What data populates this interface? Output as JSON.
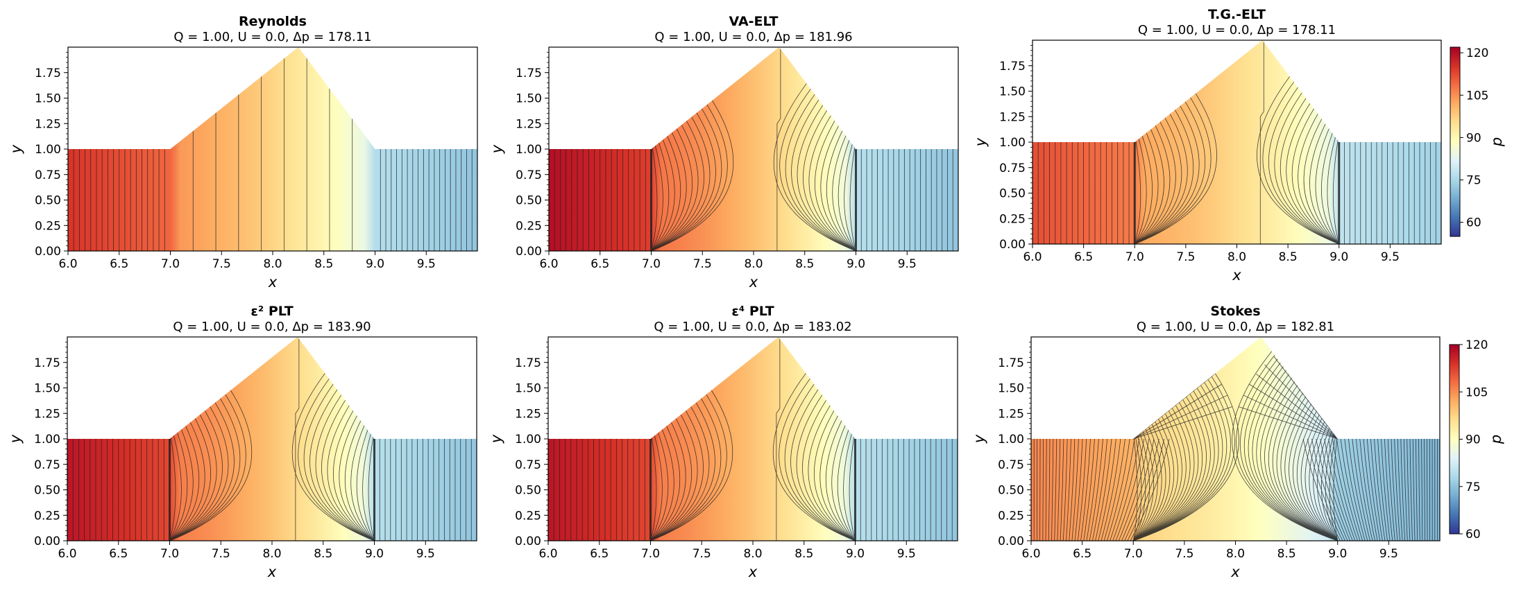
{
  "figure": {
    "width": 2192,
    "height": 851,
    "colormap": "RdYlBu_r",
    "colorbar_label": "p"
  },
  "chart_data": [
    {
      "type": "contour",
      "title": "Reynolds",
      "subtitle": "Q = 1.00, U = 0.0, Δp = 178.11",
      "xlabel": "x",
      "ylabel": "y",
      "xlim": [
        6.0,
        10.0
      ],
      "ylim": [
        0.0,
        2.0
      ],
      "xticks": [
        "6.0",
        "6.5",
        "7.0",
        "7.5",
        "8.0",
        "8.5",
        "9.0",
        "9.5"
      ],
      "yticks": [
        "0.00",
        "0.25",
        "0.50",
        "0.75",
        "1.00",
        "1.25",
        "1.50",
        "1.75"
      ],
      "geometry": {
        "inlet_end": 7.0,
        "apex_x": 8.25,
        "apex_y": 2.0,
        "outlet_start": 9.0,
        "channel_height": 1.0
      },
      "inlet_pressure": 115,
      "outlet_pressure": 72,
      "contour_style": "vertical",
      "colorbar": null
    },
    {
      "type": "contour",
      "title": "VA-ELT",
      "subtitle": "Q = 1.00, U = 0.0, Δp = 181.96",
      "xlabel": "x",
      "ylabel": "y",
      "xlim": [
        6.0,
        10.0
      ],
      "ylim": [
        0.0,
        2.0
      ],
      "xticks": [
        "6.0",
        "6.5",
        "7.0",
        "7.5",
        "8.0",
        "8.5",
        "9.0",
        "9.5"
      ],
      "yticks": [
        "0.00",
        "0.25",
        "0.50",
        "0.75",
        "1.00",
        "1.25",
        "1.50",
        "1.75"
      ],
      "geometry": {
        "inlet_end": 7.0,
        "apex_x": 8.25,
        "apex_y": 2.0,
        "outlet_start": 9.0,
        "channel_height": 1.0
      },
      "inlet_pressure": 120,
      "outlet_pressure": 72,
      "contour_style": "eddy",
      "colorbar": null
    },
    {
      "type": "contour",
      "title": "T.G.-ELT",
      "subtitle": "Q = 1.00, U = 0.0, Δp = 178.11",
      "xlabel": "x",
      "ylabel": "y",
      "xlim": [
        6.0,
        10.0
      ],
      "ylim": [
        0.0,
        2.0
      ],
      "xticks": [
        "6.0",
        "6.5",
        "7.0",
        "7.5",
        "8.0",
        "8.5",
        "9.0",
        "9.5"
      ],
      "yticks": [
        "0.00",
        "0.25",
        "0.50",
        "0.75",
        "1.00",
        "1.25",
        "1.50",
        "1.75"
      ],
      "geometry": {
        "inlet_end": 7.0,
        "apex_x": 8.25,
        "apex_y": 2.0,
        "outlet_start": 9.0,
        "channel_height": 1.0
      },
      "inlet_pressure": 112,
      "outlet_pressure": 74,
      "contour_style": "eddy",
      "colorbar": {
        "label": "p",
        "min": 55,
        "max": 122,
        "ticks": [
          "120",
          "105",
          "90",
          "75",
          "60"
        ],
        "tick_values": [
          120,
          105,
          90,
          75,
          60
        ]
      }
    },
    {
      "type": "contour",
      "title": "ε² PLT",
      "subtitle": "Q = 1.00, U = 0.0, Δp = 183.90",
      "xlabel": "x",
      "ylabel": "y",
      "xlim": [
        6.0,
        10.0
      ],
      "ylim": [
        0.0,
        2.0
      ],
      "xticks": [
        "6.0",
        "6.5",
        "7.0",
        "7.5",
        "8.0",
        "8.5",
        "9.0",
        "9.5"
      ],
      "yticks": [
        "0.00",
        "0.25",
        "0.50",
        "0.75",
        "1.00",
        "1.25",
        "1.50",
        "1.75"
      ],
      "geometry": {
        "inlet_end": 7.0,
        "apex_x": 8.25,
        "apex_y": 2.0,
        "outlet_start": 9.0,
        "channel_height": 1.0
      },
      "inlet_pressure": 119,
      "outlet_pressure": 72,
      "contour_style": "eddy",
      "colorbar": null
    },
    {
      "type": "contour",
      "title": "ε⁴ PLT",
      "subtitle": "Q = 1.00, U = 0.0, Δp = 183.02",
      "xlabel": "x",
      "ylabel": "y",
      "xlim": [
        6.0,
        10.0
      ],
      "ylim": [
        0.0,
        2.0
      ],
      "xticks": [
        "6.0",
        "6.5",
        "7.0",
        "7.5",
        "8.0",
        "8.5",
        "9.0",
        "9.5"
      ],
      "yticks": [
        "0.00",
        "0.25",
        "0.50",
        "0.75",
        "1.00",
        "1.25",
        "1.50",
        "1.75"
      ],
      "geometry": {
        "inlet_end": 7.0,
        "apex_x": 8.25,
        "apex_y": 2.0,
        "outlet_start": 9.0,
        "channel_height": 1.0
      },
      "inlet_pressure": 119,
      "outlet_pressure": 72,
      "contour_style": "eddy",
      "colorbar": null
    },
    {
      "type": "contour",
      "title": "Stokes",
      "subtitle": "Q = 1.00, U = 0.0, Δp = 182.81",
      "xlabel": "x",
      "ylabel": "y",
      "xlim": [
        6.0,
        10.0
      ],
      "ylim": [
        0.0,
        2.0
      ],
      "xticks": [
        "6.0",
        "6.5",
        "7.0",
        "7.5",
        "8.0",
        "8.5",
        "9.0",
        "9.5"
      ],
      "yticks": [
        "0.00",
        "0.25",
        "0.50",
        "0.75",
        "1.00",
        "1.25",
        "1.50",
        "1.75"
      ],
      "geometry": {
        "inlet_end": 7.0,
        "apex_x": 8.25,
        "apex_y": 2.0,
        "outlet_start": 9.0,
        "channel_height": 1.0
      },
      "inlet_pressure": 106,
      "outlet_pressure": 70,
      "contour_style": "stokes",
      "colorbar": {
        "label": "p",
        "min": 60,
        "max": 120,
        "ticks": [
          "120",
          "105",
          "90",
          "75",
          "60"
        ],
        "tick_values": [
          120,
          105,
          90,
          75,
          60
        ]
      }
    }
  ]
}
